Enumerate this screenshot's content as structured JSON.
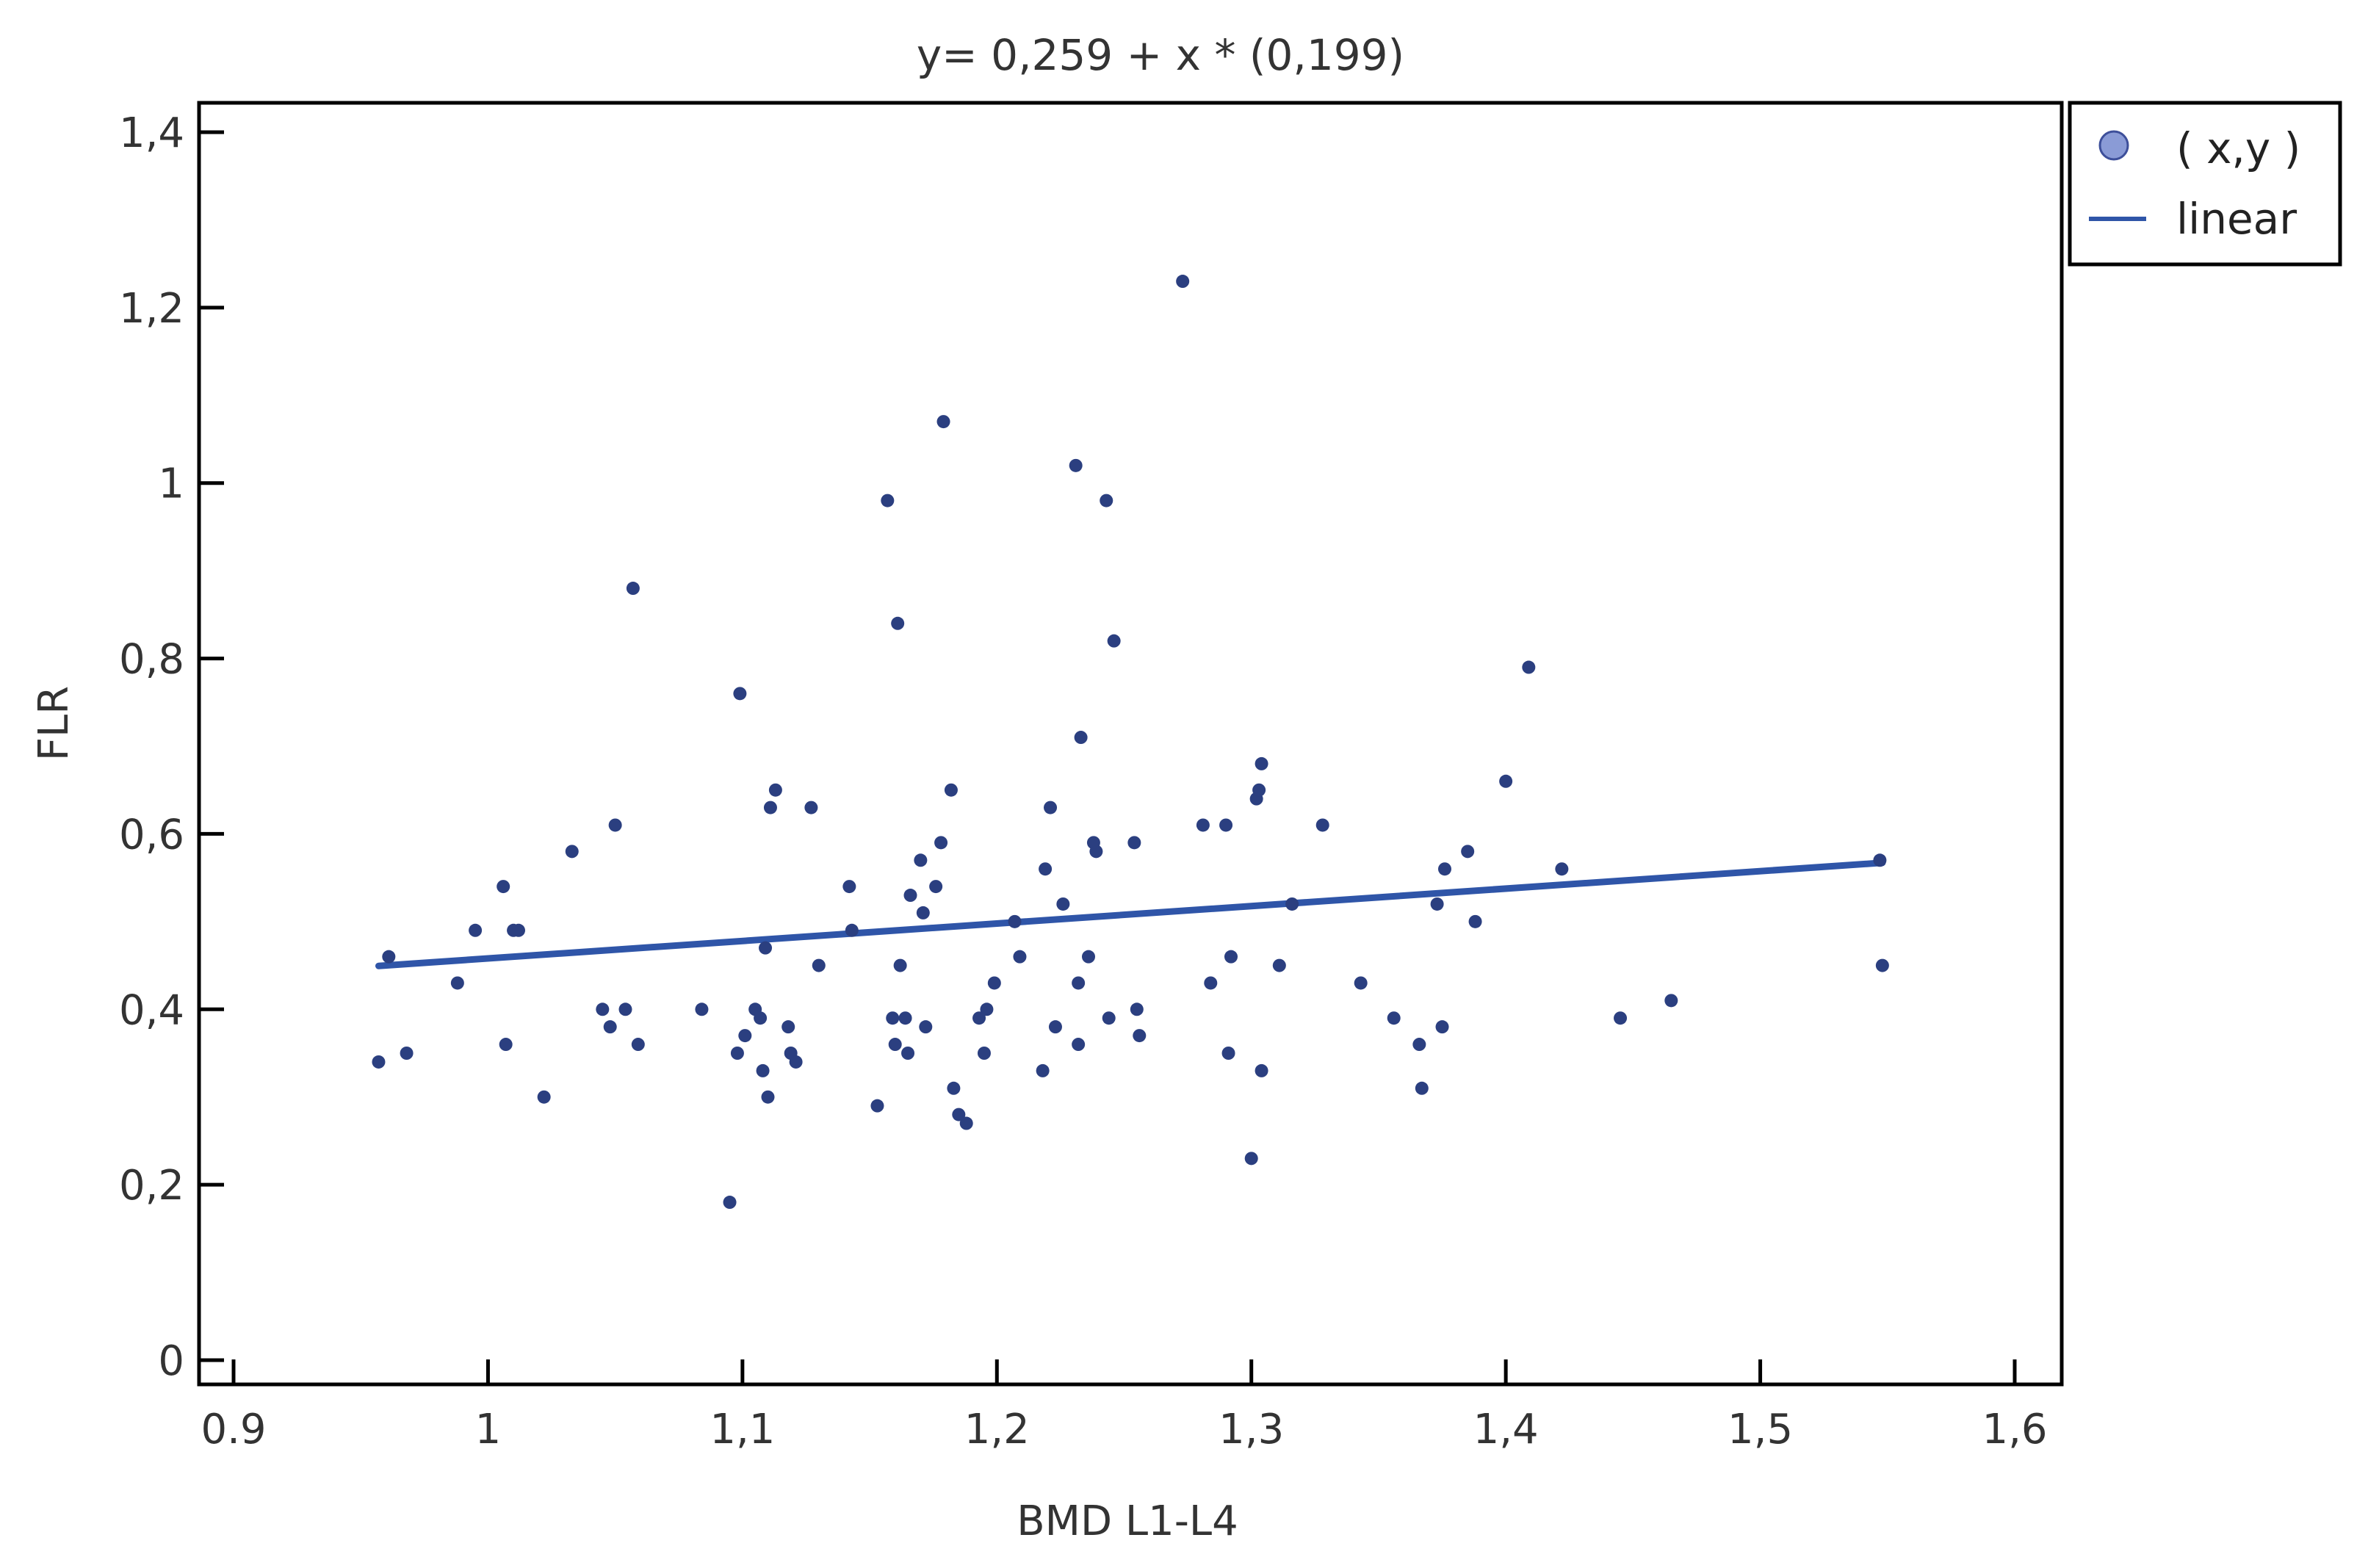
{
  "chart_data": {
    "type": "scatter",
    "title": "y= 0,259 + x * (0,199)",
    "xlabel": "BMD L1-L4",
    "ylabel": "FLR",
    "xlim": [
      0.9,
      1.6
    ],
    "ylim": [
      0,
      1.4
    ],
    "x_ticks": [
      {
        "value": 0.9,
        "label": "0.9"
      },
      {
        "value": 1.0,
        "label": "1"
      },
      {
        "value": 1.1,
        "label": "1,1"
      },
      {
        "value": 1.2,
        "label": "1,2"
      },
      {
        "value": 1.3,
        "label": "1,3"
      },
      {
        "value": 1.4,
        "label": "1,4"
      },
      {
        "value": 1.5,
        "label": "1,5"
      },
      {
        "value": 1.6,
        "label": "1,6"
      }
    ],
    "y_ticks": [
      {
        "value": 0,
        "label": "0"
      },
      {
        "value": 0.2,
        "label": "0,2"
      },
      {
        "value": 0.4,
        "label": "0,4"
      },
      {
        "value": 0.6,
        "label": "0,6"
      },
      {
        "value": 0.8,
        "label": "0,8"
      },
      {
        "value": 1.0,
        "label": "1"
      },
      {
        "value": 1.2,
        "label": "1,2"
      },
      {
        "value": 1.4,
        "label": "1,4"
      }
    ],
    "grid": false,
    "legend_position": "outside-top-right",
    "colors": {
      "points": "#2b3f80",
      "line": "#2f55a8",
      "marker_legend": "#8a9bd6"
    },
    "series": [
      {
        "name": "(x,y)",
        "kind": "scatter",
        "points": [
          [
            0.957,
            0.34
          ],
          [
            0.961,
            0.46
          ],
          [
            0.968,
            0.35
          ],
          [
            0.988,
            0.43
          ],
          [
            0.995,
            0.49
          ],
          [
            1.006,
            0.54
          ],
          [
            1.007,
            0.36
          ],
          [
            1.01,
            0.49
          ],
          [
            1.012,
            0.49
          ],
          [
            1.022,
            0.3
          ],
          [
            1.033,
            0.58
          ],
          [
            1.045,
            0.4
          ],
          [
            1.048,
            0.38
          ],
          [
            1.05,
            0.61
          ],
          [
            1.054,
            0.4
          ],
          [
            1.057,
            0.88
          ],
          [
            1.059,
            0.36
          ],
          [
            1.084,
            0.4
          ],
          [
            1.095,
            0.18
          ],
          [
            1.098,
            0.35
          ],
          [
            1.099,
            0.76
          ],
          [
            1.101,
            0.37
          ],
          [
            1.105,
            0.4
          ],
          [
            1.107,
            0.39
          ],
          [
            1.108,
            0.33
          ],
          [
            1.109,
            0.47
          ],
          [
            1.11,
            0.3
          ],
          [
            1.111,
            0.63
          ],
          [
            1.113,
            0.65
          ],
          [
            1.118,
            0.38
          ],
          [
            1.119,
            0.35
          ],
          [
            1.121,
            0.34
          ],
          [
            1.127,
            0.63
          ],
          [
            1.13,
            0.45
          ],
          [
            1.142,
            0.54
          ],
          [
            1.143,
            0.49
          ],
          [
            1.153,
            0.29
          ],
          [
            1.157,
            0.98
          ],
          [
            1.159,
            0.39
          ],
          [
            1.16,
            0.36
          ],
          [
            1.161,
            0.84
          ],
          [
            1.162,
            0.45
          ],
          [
            1.164,
            0.39
          ],
          [
            1.165,
            0.35
          ],
          [
            1.166,
            0.53
          ],
          [
            1.17,
            0.57
          ],
          [
            1.171,
            0.51
          ],
          [
            1.172,
            0.38
          ],
          [
            1.176,
            0.54
          ],
          [
            1.178,
            0.59
          ],
          [
            1.179,
            1.07
          ],
          [
            1.182,
            0.65
          ],
          [
            1.183,
            0.31
          ],
          [
            1.185,
            0.28
          ],
          [
            1.188,
            0.27
          ],
          [
            1.193,
            0.39
          ],
          [
            1.195,
            0.35
          ],
          [
            1.196,
            0.4
          ],
          [
            1.199,
            0.43
          ],
          [
            1.207,
            0.5
          ],
          [
            1.209,
            0.46
          ],
          [
            1.218,
            0.33
          ],
          [
            1.219,
            0.56
          ],
          [
            1.221,
            0.63
          ],
          [
            1.223,
            0.38
          ],
          [
            1.226,
            0.52
          ],
          [
            1.231,
            1.02
          ],
          [
            1.232,
            0.43
          ],
          [
            1.232,
            0.36
          ],
          [
            1.233,
            0.71
          ],
          [
            1.236,
            0.46
          ],
          [
            1.238,
            0.59
          ],
          [
            1.239,
            0.58
          ],
          [
            1.243,
            0.98
          ],
          [
            1.244,
            0.39
          ],
          [
            1.246,
            0.82
          ],
          [
            1.254,
            0.59
          ],
          [
            1.255,
            0.4
          ],
          [
            1.256,
            0.37
          ],
          [
            1.273,
            1.23
          ],
          [
            1.281,
            0.61
          ],
          [
            1.284,
            0.43
          ],
          [
            1.29,
            0.61
          ],
          [
            1.291,
            0.35
          ],
          [
            1.292,
            0.46
          ],
          [
            1.3,
            0.23
          ],
          [
            1.302,
            0.64
          ],
          [
            1.303,
            0.65
          ],
          [
            1.304,
            0.33
          ],
          [
            1.304,
            0.68
          ],
          [
            1.311,
            0.45
          ],
          [
            1.316,
            0.52
          ],
          [
            1.328,
            0.61
          ],
          [
            1.343,
            0.43
          ],
          [
            1.356,
            0.39
          ],
          [
            1.366,
            0.36
          ],
          [
            1.367,
            0.31
          ],
          [
            1.373,
            0.52
          ],
          [
            1.375,
            0.38
          ],
          [
            1.376,
            0.56
          ],
          [
            1.385,
            0.58
          ],
          [
            1.388,
            0.5
          ],
          [
            1.4,
            0.66
          ],
          [
            1.409,
            0.79
          ],
          [
            1.422,
            0.56
          ],
          [
            1.445,
            0.39
          ],
          [
            1.465,
            0.41
          ],
          [
            1.547,
            0.57
          ],
          [
            1.548,
            0.45
          ]
        ]
      },
      {
        "name": "linear",
        "kind": "line",
        "intercept": 0.259,
        "slope": 0.199,
        "x_range": [
          0.957,
          1.548
        ]
      }
    ]
  }
}
